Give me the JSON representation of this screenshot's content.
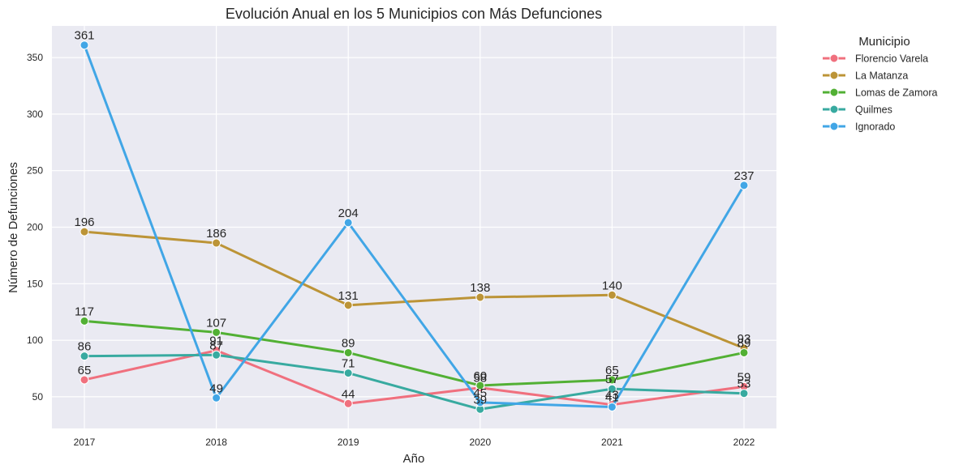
{
  "chart_data": {
    "type": "line",
    "title": "Evolución Anual en los 5 Municipios con Más Defunciones",
    "xlabel": "Año",
    "ylabel": "Número de Defunciones",
    "categories": [
      "2017",
      "2018",
      "2019",
      "2020",
      "2021",
      "2022"
    ],
    "y_ticks": [
      50,
      100,
      150,
      200,
      250,
      300,
      350
    ],
    "ylim": [
      22,
      378
    ],
    "grid": true,
    "legend_position": "outside-top-right",
    "legend_title": "Municipio",
    "series": [
      {
        "name": "Florencio Varela",
        "color": "#f0707e",
        "values": [
          65,
          91,
          44,
          58,
          43,
          59
        ]
      },
      {
        "name": "La Matanza",
        "color": "#bc9437",
        "values": [
          196,
          186,
          131,
          138,
          140,
          93
        ]
      },
      {
        "name": "Lomas de Zamora",
        "color": "#52b034",
        "values": [
          117,
          107,
          89,
          60,
          65,
          89
        ]
      },
      {
        "name": "Quilmes",
        "color": "#38aaa0",
        "values": [
          86,
          87,
          71,
          39,
          57,
          53
        ]
      },
      {
        "name": "Ignorado",
        "color": "#41a6e6",
        "values": [
          361,
          49,
          204,
          45,
          41,
          237
        ]
      }
    ]
  }
}
